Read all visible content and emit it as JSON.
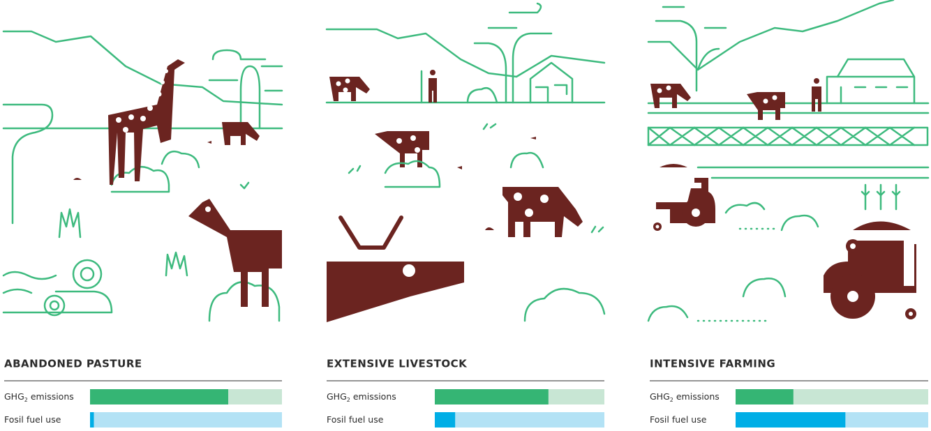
{
  "xlim": [
    0,
    100
  ],
  "panels": [
    {
      "title": "ABANDONED PASTURE",
      "metrics": [
        {
          "label": [
            "GHG",
            "2",
            " emissions"
          ],
          "value": 72,
          "color": "#35b574",
          "track": "#c8e6d4"
        },
        {
          "label": [
            "Fosil fuel use"
          ],
          "value": 2,
          "color": "#00aee6",
          "track": "#b3e2f5"
        }
      ]
    },
    {
      "title": "EXTENSIVE LIVESTOCK",
      "metrics": [
        {
          "label": [
            "GHG",
            "2",
            " emissions"
          ],
          "value": 67,
          "color": "#35b574",
          "track": "#c8e6d4"
        },
        {
          "label": [
            "Fosil fuel use"
          ],
          "value": 12,
          "color": "#00aee6",
          "track": "#b3e2f5"
        }
      ]
    },
    {
      "title": "INTENSIVE  FARMING",
      "metrics": [
        {
          "label": [
            "GHG",
            "2",
            " emissions"
          ],
          "value": 30,
          "color": "#35b574",
          "track": "#c8e6d4"
        },
        {
          "label": [
            "Fosil fuel use"
          ],
          "value": 57,
          "color": "#00aee6",
          "track": "#b3e2f5"
        }
      ]
    }
  ]
}
